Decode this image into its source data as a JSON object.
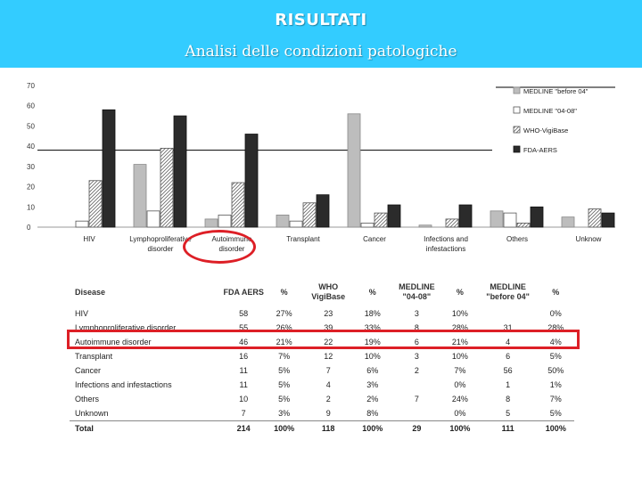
{
  "header": {
    "title": "RISULTATI",
    "subtitle": "Analisi delle condizioni patologiche",
    "bg_color": "#33CCFF"
  },
  "chart_data": {
    "type": "bar",
    "title": "",
    "xlabel": "",
    "ylabel": "",
    "ylim": [
      0,
      70
    ],
    "yticks": [
      "70",
      "60",
      "50",
      "40",
      "30",
      "20",
      "10",
      "0"
    ],
    "legend_position": "top-right",
    "categories": [
      [
        "HIV"
      ],
      [
        "Lymphoproliferative",
        "disorder"
      ],
      [
        "Autoimmune",
        "disorder"
      ],
      [
        "Transplant"
      ],
      [
        "Cancer"
      ],
      [
        "Infections and",
        "infestactions"
      ],
      [
        "Others"
      ],
      [
        "Unknow"
      ]
    ],
    "series": [
      {
        "name": "MEDLINE \"before 04\"",
        "pattern": "grey",
        "values": [
          0,
          31,
          4,
          6,
          56,
          1,
          8,
          5
        ]
      },
      {
        "name": "MEDLINE \"04-08\"",
        "pattern": "white",
        "values": [
          3,
          8,
          6,
          3,
          2,
          0,
          7,
          0
        ]
      },
      {
        "name": "WHO-VigiBase",
        "pattern": "hatched",
        "values": [
          23,
          39,
          22,
          12,
          7,
          4,
          2,
          9
        ]
      },
      {
        "name": "FDA-AERS",
        "pattern": "black",
        "values": [
          58,
          55,
          46,
          16,
          11,
          11,
          10,
          7
        ]
      }
    ]
  },
  "table": {
    "headers": [
      "Disease",
      "FDA AERS",
      "%",
      "WHO VigiBase",
      "%",
      "MEDLINE \"04-08\"",
      "%",
      "MEDLINE \"before 04\"",
      "%"
    ],
    "rows": [
      [
        "HIV",
        "58",
        "27%",
        "23",
        "18%",
        "3",
        "10%",
        "",
        "0%"
      ],
      [
        "Lymphoproliferative disorder",
        "55",
        "26%",
        "39",
        "33%",
        "8",
        "28%",
        "31",
        "28%"
      ],
      [
        "Autoimmune disorder",
        "46",
        "21%",
        "22",
        "19%",
        "6",
        "21%",
        "4",
        "4%"
      ],
      [
        "Transplant",
        "16",
        "7%",
        "12",
        "10%",
        "3",
        "10%",
        "6",
        "5%"
      ],
      [
        "Cancer",
        "11",
        "5%",
        "7",
        "6%",
        "2",
        "7%",
        "56",
        "50%"
      ],
      [
        "Infections and infestactions",
        "11",
        "5%",
        "4",
        "3%",
        "",
        "0%",
        "1",
        "1%"
      ],
      [
        "Others",
        "10",
        "5%",
        "2",
        "2%",
        "7",
        "24%",
        "8",
        "7%"
      ],
      [
        "Unknown",
        "7",
        "3%",
        "9",
        "8%",
        "",
        "0%",
        "5",
        "5%"
      ]
    ],
    "total": [
      "Total",
      "214",
      "100%",
      "118",
      "100%",
      "29",
      "100%",
      "111",
      "100%"
    ]
  },
  "highlight_color": "#dd1f26"
}
